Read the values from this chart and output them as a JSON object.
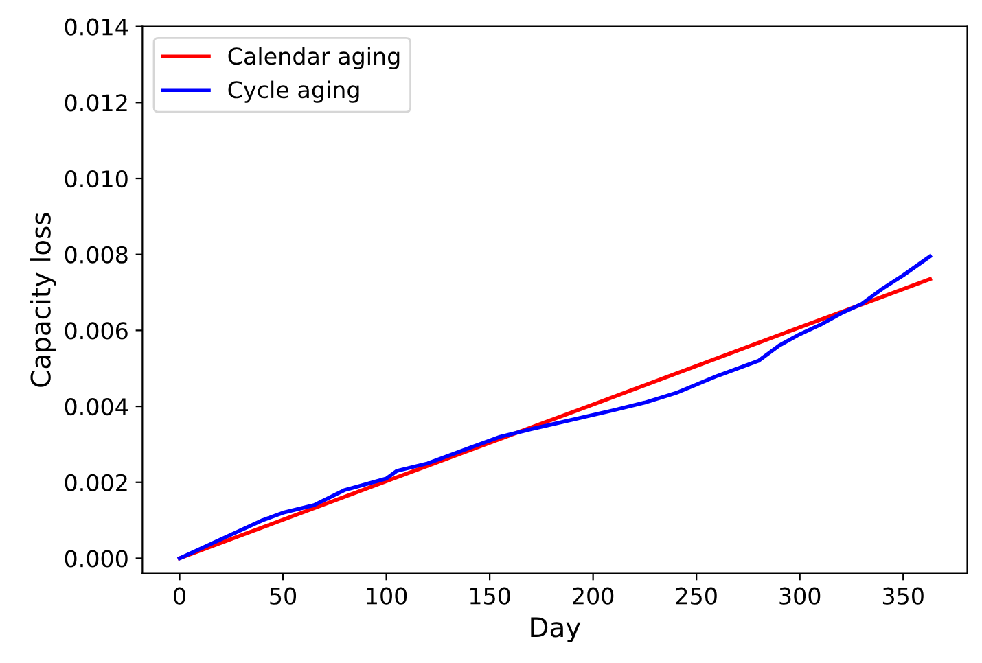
{
  "chart_data": {
    "type": "line",
    "xlabel": "Day",
    "ylabel": "Capacity loss",
    "xlim": [
      -18,
      381
    ],
    "ylim": [
      -0.0004,
      0.014
    ],
    "xticks": [
      0,
      50,
      100,
      150,
      200,
      250,
      300,
      350
    ],
    "yticks": [
      {
        "value": 0,
        "label": "0.000"
      },
      {
        "value": 0.002,
        "label": "0.002"
      },
      {
        "value": 0.004,
        "label": "0.004"
      },
      {
        "value": 0.006,
        "label": "0.006"
      },
      {
        "value": 0.008,
        "label": "0.008"
      },
      {
        "value": 0.01,
        "label": "0.010"
      },
      {
        "value": 0.012,
        "label": "0.012"
      },
      {
        "value": 0.014,
        "label": "0.014"
      }
    ],
    "legend": "top left",
    "grid": false,
    "series": [
      {
        "name": "Calendar aging",
        "color": "#ff0000",
        "x": [
          0,
          100,
          200,
          300,
          363
        ],
        "values": [
          0,
          0.00203,
          0.00405,
          0.00608,
          0.00735
        ]
      },
      {
        "name": "Cycle aging",
        "color": "#0000ff",
        "x": [
          0,
          20,
          40,
          50,
          65,
          80,
          100,
          105,
          120,
          140,
          155,
          170,
          190,
          210,
          225,
          240,
          260,
          280,
          290,
          300,
          310,
          320,
          330,
          340,
          350,
          363
        ],
        "values": [
          0,
          0.0005,
          0.001,
          0.0012,
          0.0014,
          0.0018,
          0.0021,
          0.0023,
          0.0025,
          0.0029,
          0.0032,
          0.0034,
          0.00365,
          0.0039,
          0.0041,
          0.00435,
          0.0048,
          0.0052,
          0.0056,
          0.0059,
          0.00615,
          0.00645,
          0.0067,
          0.0071,
          0.00745,
          0.00795
        ]
      }
    ]
  }
}
